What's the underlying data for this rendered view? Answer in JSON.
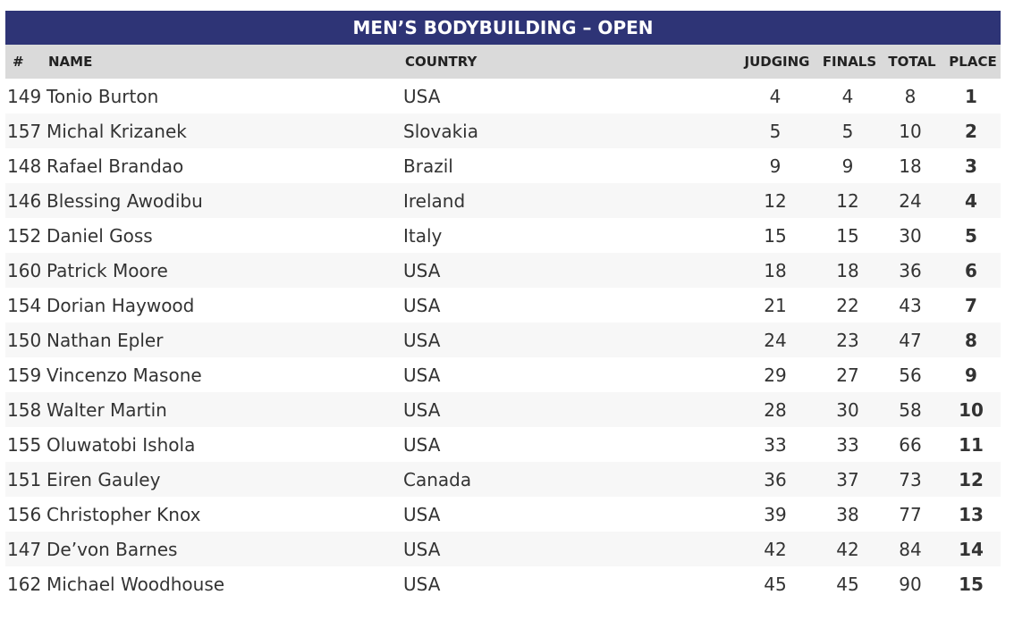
{
  "table": {
    "title": "MEN’S BODYBUILDING – OPEN",
    "headers": [
      "#",
      "NAME",
      "COUNTRY",
      "JUDGING",
      "FINALS",
      "TOTAL",
      "PLACE"
    ],
    "rows": [
      [
        149,
        "Tonio Burton",
        "USA",
        4,
        4,
        8,
        1
      ],
      [
        157,
        "Michal Krizanek",
        "Slovakia",
        5,
        5,
        10,
        2
      ],
      [
        148,
        "Rafael Brandao",
        "Brazil",
        9,
        9,
        18,
        3
      ],
      [
        146,
        "Blessing Awodibu",
        "Ireland",
        12,
        12,
        24,
        4
      ],
      [
        152,
        "Daniel Goss",
        "Italy",
        15,
        15,
        30,
        5
      ],
      [
        160,
        "Patrick Moore",
        "USA",
        18,
        18,
        36,
        6
      ],
      [
        154,
        "Dorian Haywood",
        "USA",
        21,
        22,
        43,
        7
      ],
      [
        150,
        "Nathan Epler",
        "USA",
        24,
        23,
        47,
        8
      ],
      [
        159,
        "Vincenzo Masone",
        "USA",
        29,
        27,
        56,
        9
      ],
      [
        158,
        "Walter Martin",
        "USA",
        28,
        30,
        58,
        10
      ],
      [
        155,
        "Oluwatobi Ishola",
        "USA",
        33,
        33,
        66,
        11
      ],
      [
        151,
        "Eiren Gauley",
        "Canada",
        36,
        37,
        73,
        12
      ],
      [
        156,
        "Christopher Knox",
        "USA",
        39,
        38,
        77,
        13
      ],
      [
        147,
        "De’von Barnes",
        "USA",
        42,
        42,
        84,
        14
      ],
      [
        162,
        "Michael Woodhouse",
        "USA",
        45,
        45,
        90,
        15
      ]
    ]
  }
}
